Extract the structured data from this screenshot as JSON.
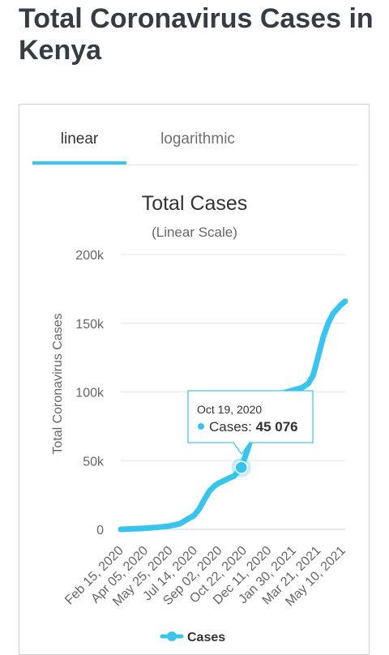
{
  "page": {
    "title": "Total Coronavirus Cases in Kenya"
  },
  "tabs": [
    {
      "label": "linear",
      "active": true
    },
    {
      "label": "logarithmic",
      "active": false
    }
  ],
  "colors": {
    "accent": "#3ec6f0",
    "line": "#39c4f0",
    "title": "#363c44"
  },
  "chart_data": {
    "type": "line",
    "title": "Total Cases",
    "subtitle": "(Linear Scale)",
    "ylabel": "Total Coronavirus Cases",
    "xlabel": "",
    "ylim": [
      0,
      200000
    ],
    "ytick_labels": [
      "0",
      "50k",
      "100k",
      "150k",
      "200k"
    ],
    "ytick_values": [
      0,
      50000,
      100000,
      150000,
      200000
    ],
    "x_tick_labels": [
      "Feb 15, 2020",
      "Apr 05, 2020",
      "May 25, 2020",
      "Jul 14, 2020",
      "Sep 02, 2020",
      "Oct 22, 2020",
      "Dec 11, 2020",
      "Jan 30, 2021",
      "Mar 21, 2021",
      "May 10, 2021"
    ],
    "grid": true,
    "legend": {
      "position": "bottom",
      "label": "Cases"
    },
    "series": [
      {
        "name": "Cases",
        "x": [
          "2020-02-15",
          "2020-03-15",
          "2020-04-05",
          "2020-05-01",
          "2020-05-25",
          "2020-06-15",
          "2020-07-01",
          "2020-07-14",
          "2020-07-25",
          "2020-08-05",
          "2020-08-15",
          "2020-08-25",
          "2020-09-02",
          "2020-09-20",
          "2020-10-05",
          "2020-10-19",
          "2020-11-01",
          "2020-11-15",
          "2020-11-25",
          "2020-12-11",
          "2021-01-01",
          "2021-01-30",
          "2021-02-20",
          "2021-03-05",
          "2021-03-15",
          "2021-03-25",
          "2021-04-05",
          "2021-04-15",
          "2021-04-25",
          "2021-05-10",
          "2021-05-20"
        ],
        "y": [
          0,
          500,
          800,
          1500,
          2500,
          4000,
          7500,
          10000,
          15000,
          22000,
          28000,
          31500,
          33500,
          36500,
          39000,
          45076,
          58000,
          75000,
          85000,
          94000,
          98000,
          101000,
          103000,
          106000,
          112000,
          125000,
          140000,
          150000,
          157000,
          163000,
          166000
        ]
      }
    ],
    "tooltip": {
      "date": "Oct 19, 2020",
      "label": "Cases:",
      "value": "45 076"
    }
  }
}
